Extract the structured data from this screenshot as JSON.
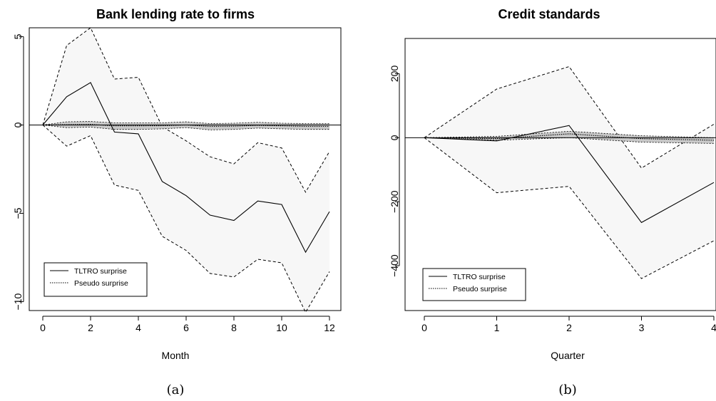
{
  "chart_data": [
    {
      "type": "line",
      "title": "Bank lending rate to firms",
      "xlabel": "Month",
      "ylabel": "",
      "caption": "(a)",
      "x": [
        0,
        1,
        2,
        3,
        4,
        5,
        6,
        7,
        8,
        9,
        10,
        11,
        12
      ],
      "xticks": [
        0,
        2,
        4,
        6,
        8,
        10,
        12
      ],
      "yticks": [
        5,
        0,
        -5,
        -10
      ],
      "xlim": [
        0,
        12
      ],
      "ylim": [
        -10.5,
        5.5
      ],
      "legend_position": "bottom-left",
      "series": [
        {
          "name": "TLTRO surprise",
          "style": "solid",
          "values": [
            0,
            1.6,
            2.4,
            -0.4,
            -0.5,
            -3.2,
            -4.0,
            -5.1,
            -5.4,
            -4.3,
            -4.5,
            -7.2,
            -4.9
          ]
        },
        {
          "name": "Pseudo surprise",
          "style": "dotted",
          "values": [
            0,
            0.02,
            0.03,
            -0.05,
            -0.05,
            -0.04,
            0.0,
            -0.08,
            -0.07,
            -0.02,
            -0.05,
            -0.08,
            -0.08
          ]
        }
      ],
      "bands": [
        {
          "of": "TLTRO surprise",
          "lower": [
            0,
            -1.2,
            -0.6,
            -3.4,
            -3.7,
            -6.3,
            -7.1,
            -8.4,
            -8.6,
            -7.6,
            -7.8,
            -10.6,
            -8.3
          ],
          "upper": [
            0,
            4.5,
            5.5,
            2.6,
            2.7,
            -0.1,
            -0.9,
            -1.8,
            -2.2,
            -1.0,
            -1.3,
            -3.8,
            -1.5
          ]
        },
        {
          "of": "Pseudo surprise",
          "lower": [
            0,
            -0.15,
            -0.12,
            -0.25,
            -0.25,
            -0.22,
            -0.15,
            -0.28,
            -0.25,
            -0.18,
            -0.22,
            -0.25,
            -0.25
          ],
          "upper": [
            0,
            0.18,
            0.2,
            0.12,
            0.12,
            0.12,
            0.18,
            0.08,
            0.1,
            0.15,
            0.1,
            0.08,
            0.08
          ]
        }
      ]
    },
    {
      "type": "line",
      "title": "Credit standards",
      "xlabel": "Quarter",
      "ylabel": "",
      "caption": "(b)",
      "x": [
        0,
        1,
        2,
        3,
        4
      ],
      "xticks": [
        0,
        1,
        2,
        3,
        4
      ],
      "yticks": [
        200,
        0,
        -200,
        -400
      ],
      "xlim": [
        0,
        4
      ],
      "ylim": [
        -540,
        310
      ],
      "legend_position": "bottom-left",
      "series": [
        {
          "name": "TLTRO surprise",
          "style": "solid",
          "values": [
            0,
            -10,
            38,
            -265,
            -140
          ]
        },
        {
          "name": "Pseudo surprise",
          "style": "dotted",
          "values": [
            0,
            -3,
            12,
            -3,
            -8
          ]
        }
      ],
      "bands": [
        {
          "of": "TLTRO surprise",
          "lower": [
            0,
            -172,
            -152,
            -440,
            -322
          ],
          "upper": [
            0,
            152,
            222,
            -95,
            42
          ]
        },
        {
          "of": "Pseudo surprise",
          "lower": [
            0,
            -8,
            0,
            -14,
            -18
          ],
          "upper": [
            0,
            4,
            20,
            6,
            0
          ]
        }
      ]
    }
  ],
  "colors": {
    "band": "#f7f7f7",
    "pseudo_band": "#c8c8c8",
    "line": "#000000"
  }
}
